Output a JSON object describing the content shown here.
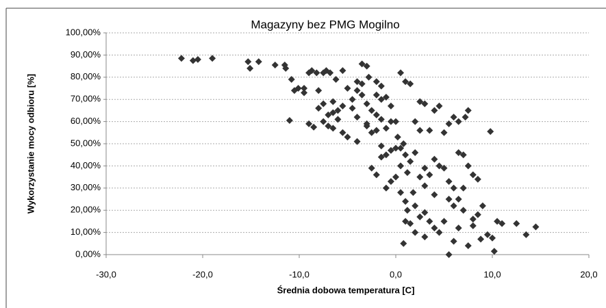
{
  "chart_data": {
    "type": "scatter",
    "title": "Magazyny bez PMG Mogilno",
    "x_label": "Średnia dobowa temperatura [C]",
    "y_label": "Wykorzystanie mocy odbioru [%]",
    "color": "#333333",
    "grid": true,
    "xlim": [
      -30,
      20
    ],
    "xticks": [
      {
        "value": -30,
        "label": "-30,0"
      },
      {
        "value": -20,
        "label": "-20,0"
      },
      {
        "value": -10,
        "label": "-10,0"
      },
      {
        "value": 0,
        "label": "0,0"
      },
      {
        "value": 10,
        "label": "10,0"
      },
      {
        "value": 20,
        "label": "20,0"
      }
    ],
    "ylim": [
      0,
      100
    ],
    "yticks": [
      {
        "value": 0,
        "label": "0,00%"
      },
      {
        "value": 10,
        "label": "10,00%"
      },
      {
        "value": 20,
        "label": "20,00%"
      },
      {
        "value": 30,
        "label": "30,00%"
      },
      {
        "value": 40,
        "label": "40,00%"
      },
      {
        "value": 50,
        "label": "50,00%"
      },
      {
        "value": 60,
        "label": "60,00%"
      },
      {
        "value": 70,
        "label": "70,00%"
      },
      {
        "value": 80,
        "label": "80,00%"
      },
      {
        "value": 90,
        "label": "90,00%"
      },
      {
        "value": 100,
        "label": "100,00%"
      }
    ],
    "x": [
      -22.2,
      -21,
      -20.5,
      -19,
      -15.3,
      -15.1,
      -14.2,
      -12.5,
      -11.5,
      -11.4,
      -10.8,
      -10.5,
      -10.1,
      -9.5,
      -9,
      -8.7,
      -8.2,
      -8,
      -7.5,
      -7.2,
      -6.8,
      -6.5,
      -6.2,
      -6,
      -5.5,
      -5,
      -4.5,
      -4,
      -3.5,
      -3,
      -2.8,
      -11,
      -9,
      -8.5,
      -7.5,
      -7,
      -6.5,
      -6,
      -5.5,
      -5,
      -4.5,
      -4,
      -3.5,
      -3,
      -2.5,
      -2,
      -1.5,
      -1,
      -0.5,
      0,
      0.5,
      1,
      1.5,
      -3,
      -2.5,
      -2,
      -1.5,
      -1,
      -0.5,
      0,
      0.5,
      1,
      1.5,
      -2.5,
      -2,
      -1.5,
      -1,
      -0.5,
      0,
      0.5,
      1,
      1.2,
      1.5,
      2,
      2.5,
      3,
      3.5,
      4,
      4.5,
      5,
      5.5,
      6,
      6.5,
      7,
      7.5,
      8,
      8.5,
      9,
      9.5,
      10,
      10.2,
      10.5,
      11,
      12.5,
      13.5,
      14.5,
      0.8,
      1.8,
      2.5,
      3,
      3.5,
      4,
      4.5,
      5,
      5.5,
      6,
      6.5,
      7,
      7.5,
      8,
      8.5,
      7.5,
      7.2,
      6.5,
      6,
      5.5,
      5,
      9.8,
      2.5,
      3,
      4,
      4.5,
      2,
      2.5,
      3.5,
      -1.5,
      -1,
      -0.5,
      0.2,
      0.8,
      -4,
      -3.5,
      -2,
      -1.5,
      -5.5,
      -6.5,
      -7,
      -7.5,
      -8,
      -9.5,
      -2,
      -3,
      -4,
      0.5,
      1.2,
      2,
      3,
      4,
      6,
      6.5,
      7,
      8,
      8.8,
      5.5,
      3,
      2,
      1
    ],
    "values": [
      88.5,
      87.5,
      88,
      88.5,
      87,
      84,
      87,
      85.5,
      85.5,
      84,
      79,
      74,
      75,
      75,
      82,
      83,
      82,
      74,
      82,
      83,
      82,
      69,
      79,
      65,
      83,
      75,
      70,
      78,
      86,
      85,
      80,
      60.5,
      59,
      57.5,
      60,
      58,
      57,
      61,
      55,
      53,
      66,
      62,
      72,
      68,
      65,
      63,
      70,
      71,
      67,
      60,
      82,
      78,
      77,
      58,
      55,
      56,
      49,
      45,
      47,
      48,
      48,
      45,
      42,
      39,
      36,
      44,
      30,
      33,
      35,
      28,
      15,
      20,
      14,
      22,
      17,
      19,
      15,
      12,
      10,
      15,
      0,
      6,
      12,
      20,
      4,
      16,
      18,
      22,
      9,
      7.5,
      1.5,
      15,
      14,
      14,
      9,
      12.5,
      5,
      28,
      35,
      31,
      36,
      27,
      40,
      39,
      33,
      30,
      46,
      45,
      40,
      36,
      34,
      65,
      62,
      60,
      62,
      59,
      55,
      55.5,
      69,
      68,
      65,
      67,
      60,
      56,
      56,
      61,
      57,
      60,
      53,
      50,
      74,
      77,
      78,
      76,
      67,
      64,
      63,
      68,
      66,
      73,
      72,
      59,
      51,
      40,
      37,
      46,
      39,
      43,
      22,
      25,
      30,
      13,
      7,
      25,
      8,
      10,
      24
    ]
  }
}
